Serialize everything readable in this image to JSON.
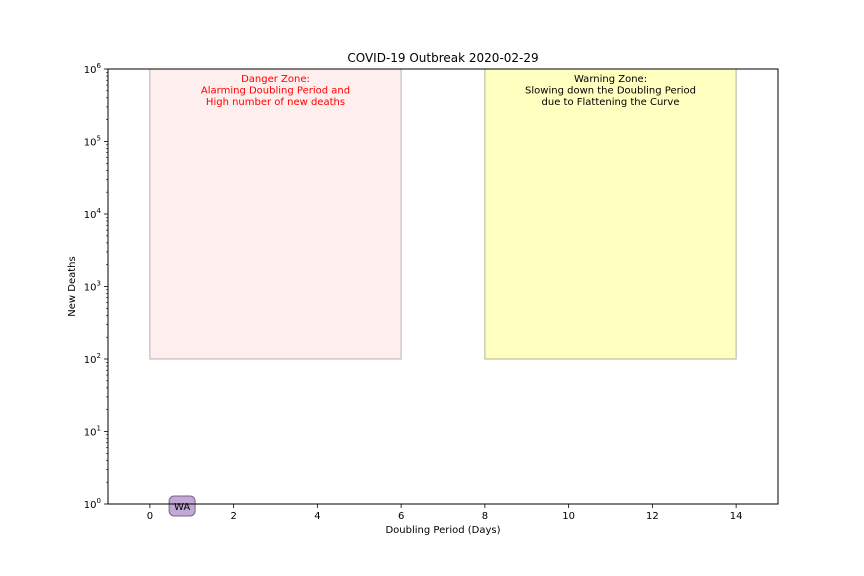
{
  "chart_data": {
    "type": "scatter",
    "title": "COVID-19 Outbreak 2020-02-29",
    "xlabel": "Doubling Period (Days)",
    "ylabel": "New Deaths",
    "xlim": [
      -1.0,
      15.0
    ],
    "ylim": [
      1,
      1000000
    ],
    "yscale": "log",
    "grid": false,
    "x_ticks": [
      0,
      2,
      4,
      6,
      8,
      10,
      12,
      14
    ],
    "x_tick_labels": [
      "0",
      "2",
      "4",
      "6",
      "8",
      "10",
      "12",
      "14"
    ],
    "y_ticks": [
      {
        "value": 1,
        "base": "10",
        "exp": "0"
      },
      {
        "value": 10,
        "base": "10",
        "exp": "1"
      },
      {
        "value": 100,
        "base": "10",
        "exp": "2"
      },
      {
        "value": 1000,
        "base": "10",
        "exp": "3"
      },
      {
        "value": 10000,
        "base": "10",
        "exp": "4"
      },
      {
        "value": 100000,
        "base": "10",
        "exp": "5"
      },
      {
        "value": 1000000,
        "base": "10",
        "exp": "6"
      }
    ],
    "zones": [
      {
        "x": [
          0,
          6
        ],
        "y": [
          100,
          1000000
        ],
        "fill": "#ffeeee",
        "edge": "#b9b0b3",
        "text_color": "#ff0000",
        "lines": [
          "Danger Zone:",
          "Alarming Doubling Period and",
          "High number of new deaths"
        ]
      },
      {
        "x": [
          8,
          14
        ],
        "y": [
          100,
          1000000
        ],
        "fill": "#ffffbf",
        "edge": "#b3b39a",
        "text_color": "#000000",
        "lines": [
          "Warning Zone:",
          "Slowing down the Doubling Period",
          "due to Flattening the Curve"
        ]
      }
    ],
    "points": [
      {
        "label": "WA",
        "x": 0.77,
        "y": 1,
        "fill": "#c2a8d6",
        "edge": "#7a6685"
      }
    ]
  }
}
